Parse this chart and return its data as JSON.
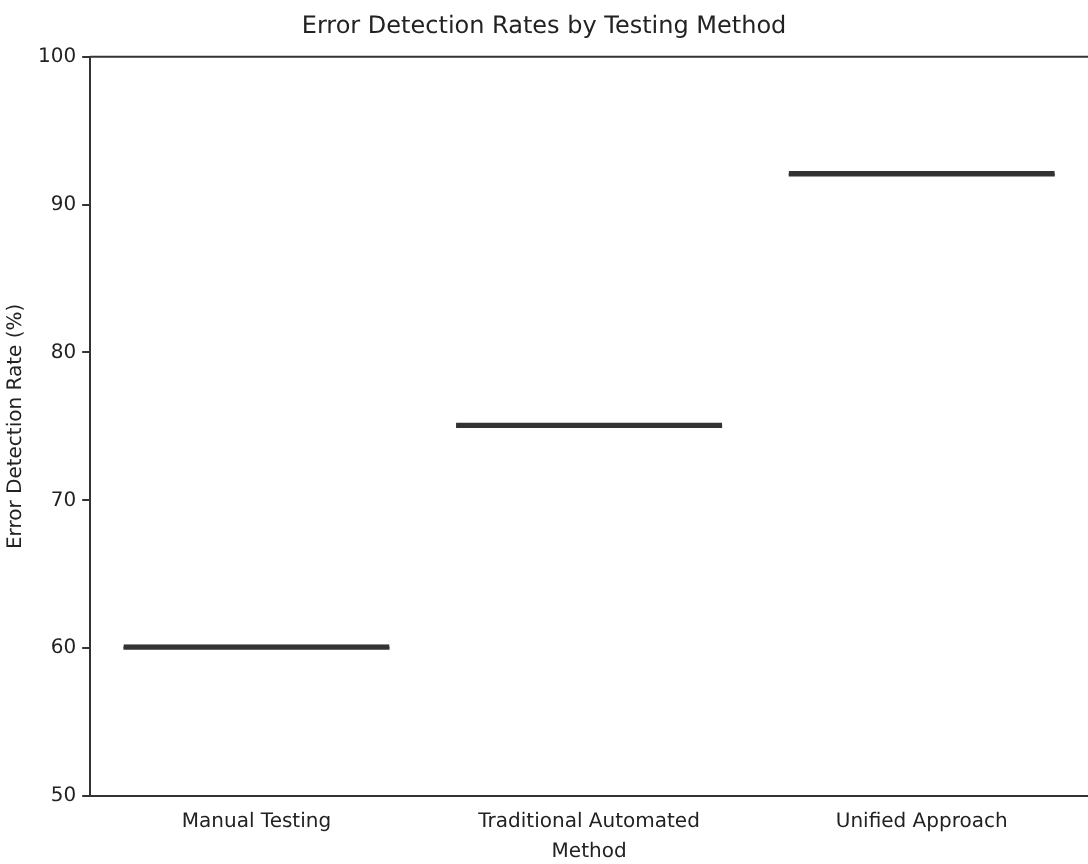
{
  "chart_data": {
    "type": "box",
    "title": "Error Detection Rates by Testing Method",
    "xlabel": "Method",
    "ylabel": "Error Detection Rate (%)",
    "categories": [
      "Manual Testing",
      "Traditional Automated",
      "Unified Approach"
    ],
    "boxes": [
      {
        "low": 60,
        "q1": 60,
        "median": 60,
        "q3": 60,
        "high": 60
      },
      {
        "low": 75,
        "q1": 75,
        "median": 75,
        "q3": 75,
        "high": 75
      },
      {
        "low": 92,
        "q1": 92,
        "median": 92,
        "q3": 92,
        "high": 92
      }
    ],
    "color": "#333333",
    "ylim": [
      50,
      100
    ],
    "yticks": [
      50,
      60,
      70,
      80,
      90,
      100
    ],
    "grid": false,
    "legend": false
  }
}
